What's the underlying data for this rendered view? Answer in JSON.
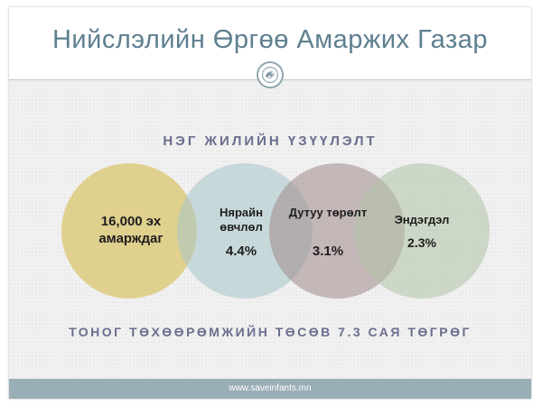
{
  "slide": {
    "title": "Нийслэлийн Өргөө Амаржих Газар",
    "logo_icon": "hands-emblem-icon",
    "subtitle": "НЭГ ЖИЛИЙН ҮЗҮҮЛЭЛТ",
    "circles": [
      {
        "label": "16,000 эх амарждаг",
        "value": "",
        "color": "#decd86"
      },
      {
        "label": "Нярайн өвчлөл",
        "value": "4.4%",
        "color": "#a6c4c9"
      },
      {
        "label": "Дутуу төрөлт",
        "value": "3.1%",
        "color": "#a1888b"
      },
      {
        "label": "Эндэгдэл",
        "value": "2.3%",
        "color": "#afc3a5"
      }
    ],
    "budget": "ТОНОГ ТӨХӨӨРӨМЖИЙН ТӨСӨВ 7.3 САЯ ТӨГРӨГ",
    "footer_url": "www.saveinfants.mn"
  }
}
